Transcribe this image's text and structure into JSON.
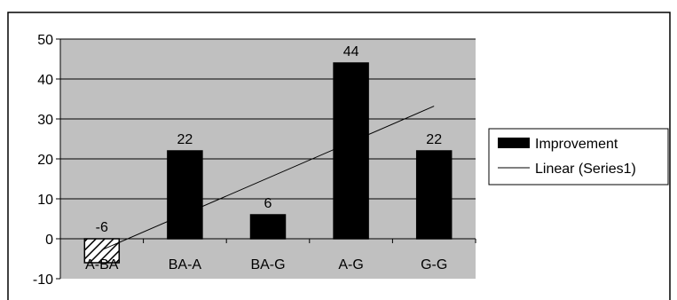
{
  "colors": {
    "plot_background": "#c0c0c0",
    "bar_fill": "#000000",
    "gridline": "#000000",
    "trendline": "#000000"
  },
  "chart_data": {
    "type": "bar",
    "title": "",
    "xlabel": "",
    "ylabel": "",
    "categories": [
      "A-BA",
      "BA-A",
      "BA-G",
      "A-G",
      "G-G"
    ],
    "series": [
      {
        "name": "Improvement",
        "values": [
          -6,
          22,
          6,
          44,
          22
        ],
        "data_labels": [
          "-6",
          "22",
          "6",
          "44",
          "22"
        ]
      }
    ],
    "negative_bar_pattern": "diagonal-hatch",
    "trendline": {
      "name": "Linear (Series1)",
      "type": "linear",
      "start": -2.8,
      "end": 33.2
    },
    "ylim": [
      -10,
      50
    ],
    "yticks": [
      -10,
      0,
      10,
      20,
      30,
      40,
      50
    ],
    "ytick_labels": [
      "-10",
      "0",
      "10",
      "20",
      "30",
      "40",
      "50"
    ],
    "grid": true,
    "legend": {
      "placement": "right",
      "entries": [
        {
          "label": "Improvement",
          "symbol": "bar"
        },
        {
          "label": "Linear (Series1)",
          "symbol": "line"
        }
      ]
    }
  }
}
